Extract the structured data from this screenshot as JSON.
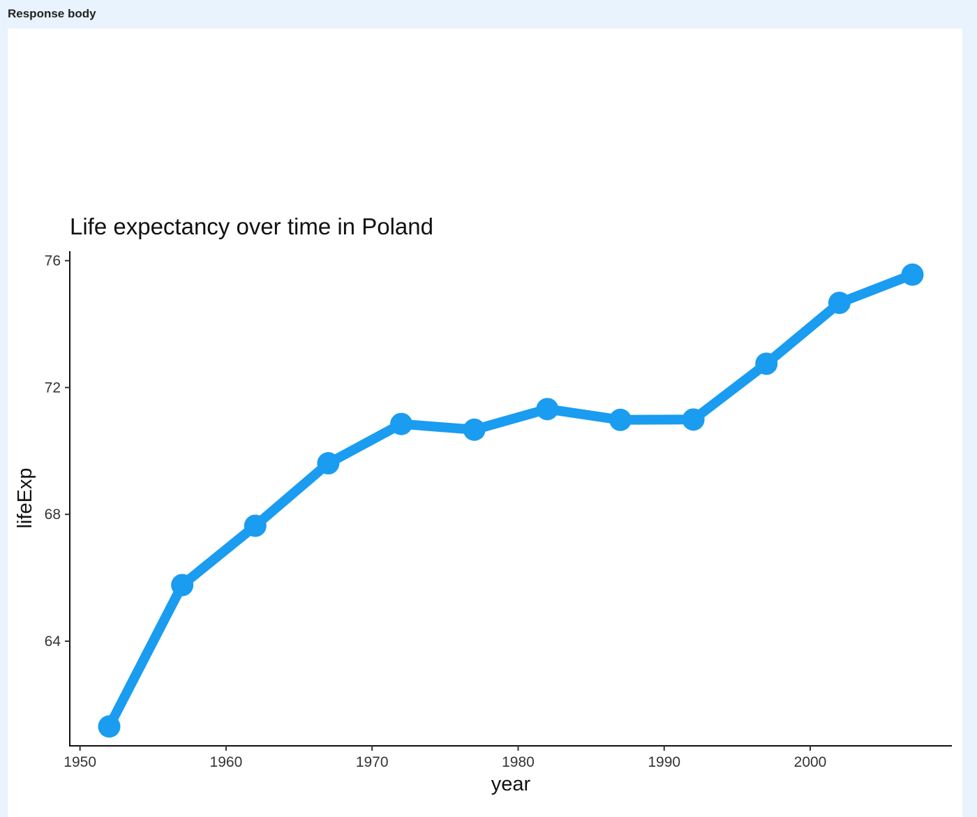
{
  "header": {
    "label": "Response body"
  },
  "chart_data": {
    "type": "line",
    "title": "Life expectancy over time in Poland",
    "xlabel": "year",
    "ylabel": "lifeExp",
    "xlim": [
      1949.3,
      2009.7
    ],
    "ylim": [
      60.7,
      76.3
    ],
    "xticks": [
      1950,
      1960,
      1970,
      1980,
      1990,
      2000
    ],
    "yticks": [
      64,
      68,
      72,
      76
    ],
    "grid": false,
    "color": "#1a9cf0",
    "x": [
      1952,
      1957,
      1962,
      1967,
      1972,
      1977,
      1982,
      1987,
      1992,
      1997,
      2002,
      2007
    ],
    "series": [
      {
        "values": [
          61.31,
          65.77,
          67.64,
          69.61,
          70.85,
          70.67,
          71.32,
          70.98,
          70.99,
          72.75,
          74.67,
          75.56
        ]
      }
    ]
  }
}
